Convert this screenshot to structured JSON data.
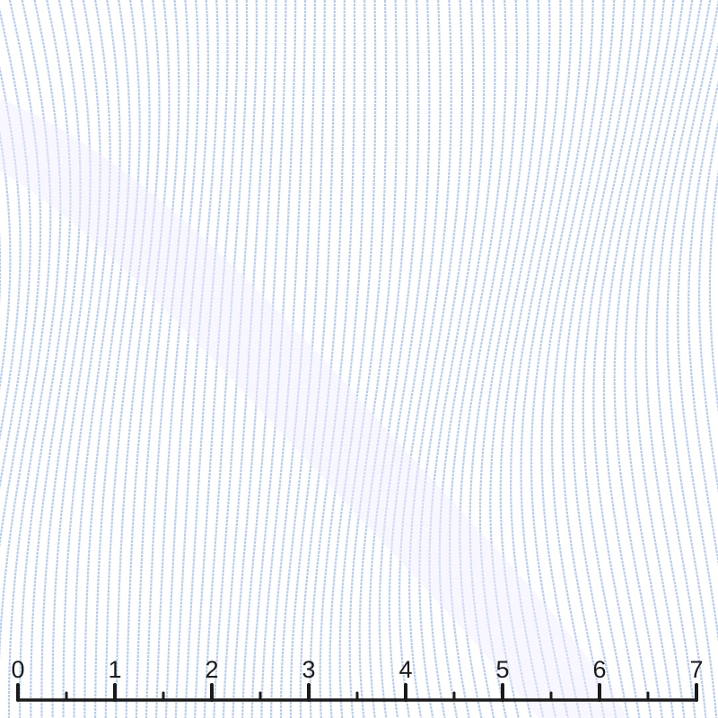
{
  "swatch": {
    "pattern": "pinstripe",
    "stripe_color": "#a9c4ec",
    "background_color": "#ffffff"
  },
  "ruler": {
    "labels": [
      "0",
      "1",
      "2",
      "3",
      "4",
      "5",
      "6",
      "7"
    ],
    "color": "#1a1a1a"
  }
}
